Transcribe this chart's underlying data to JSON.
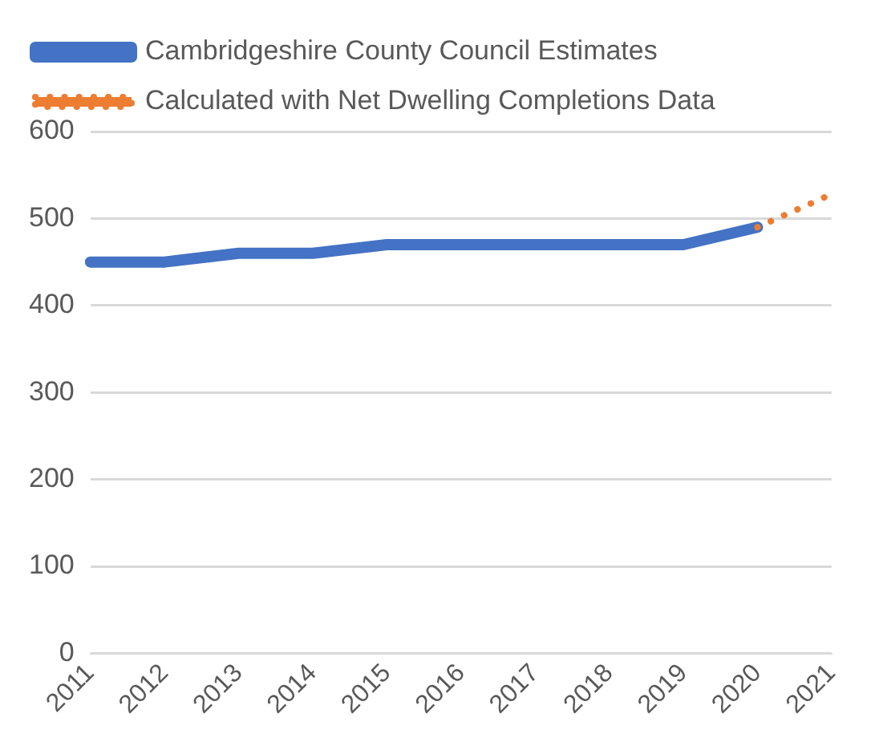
{
  "chart_data": {
    "type": "line",
    "categories": [
      "2011",
      "2012",
      "2013",
      "2014",
      "2015",
      "2016",
      "2017",
      "2018",
      "2019",
      "2020",
      "2021"
    ],
    "series": [
      {
        "name": "Cambridgeshire County Council Estimates",
        "color": "#4472c4",
        "line_style": "solid",
        "values": [
          450,
          450,
          460,
          460,
          470,
          470,
          470,
          470,
          470,
          490,
          null
        ]
      },
      {
        "name": "Calculated with Net Dwelling Completions Data",
        "color": "#ed7d31",
        "line_style": "dotted",
        "values": [
          null,
          null,
          null,
          null,
          null,
          null,
          null,
          null,
          null,
          490,
          528
        ]
      }
    ],
    "ylim": [
      0,
      600
    ],
    "yticks": [
      0,
      100,
      200,
      300,
      400,
      500,
      600
    ],
    "grid": "y",
    "legend": "top",
    "marker": "none"
  }
}
